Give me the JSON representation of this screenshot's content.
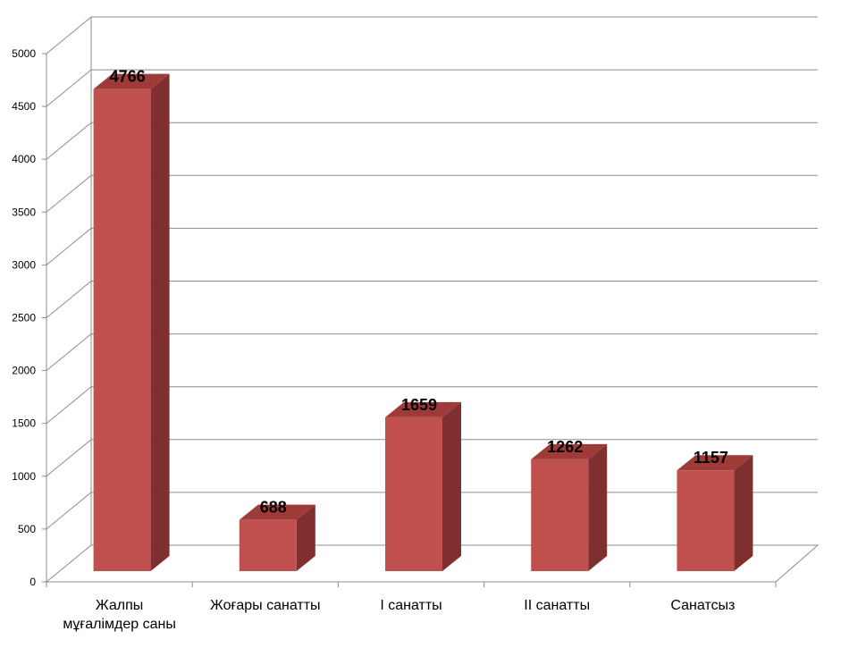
{
  "chart_data": {
    "type": "bar",
    "categories": [
      "Жалпы мұғалімдер саны",
      "Жоғары санатты",
      "I санатты",
      "II санатты",
      "Санатсыз"
    ],
    "category_lines": [
      [
        "Жалпы",
        "мұғалімдер саны"
      ],
      [
        "Жоғары санатты"
      ],
      [
        "I санатты"
      ],
      [
        "II санатты"
      ],
      [
        "Санатсыз"
      ]
    ],
    "values": [
      4766,
      688,
      1659,
      1262,
      1157
    ],
    "data_labels": [
      "4766",
      "688",
      "1659",
      "1262",
      "1157"
    ],
    "yticks": [
      0,
      500,
      1000,
      1500,
      2000,
      2500,
      3000,
      3500,
      4000,
      4500,
      5000
    ],
    "ylim": [
      0,
      5000
    ],
    "grid": true,
    "legend": "none",
    "style": "3d-column",
    "colors": {
      "bar_front": "#c0504d",
      "bar_side": "#7f2f2f",
      "bar_top": "#9e3b39",
      "grid": "#8c8c8c",
      "text": "#000000"
    }
  }
}
